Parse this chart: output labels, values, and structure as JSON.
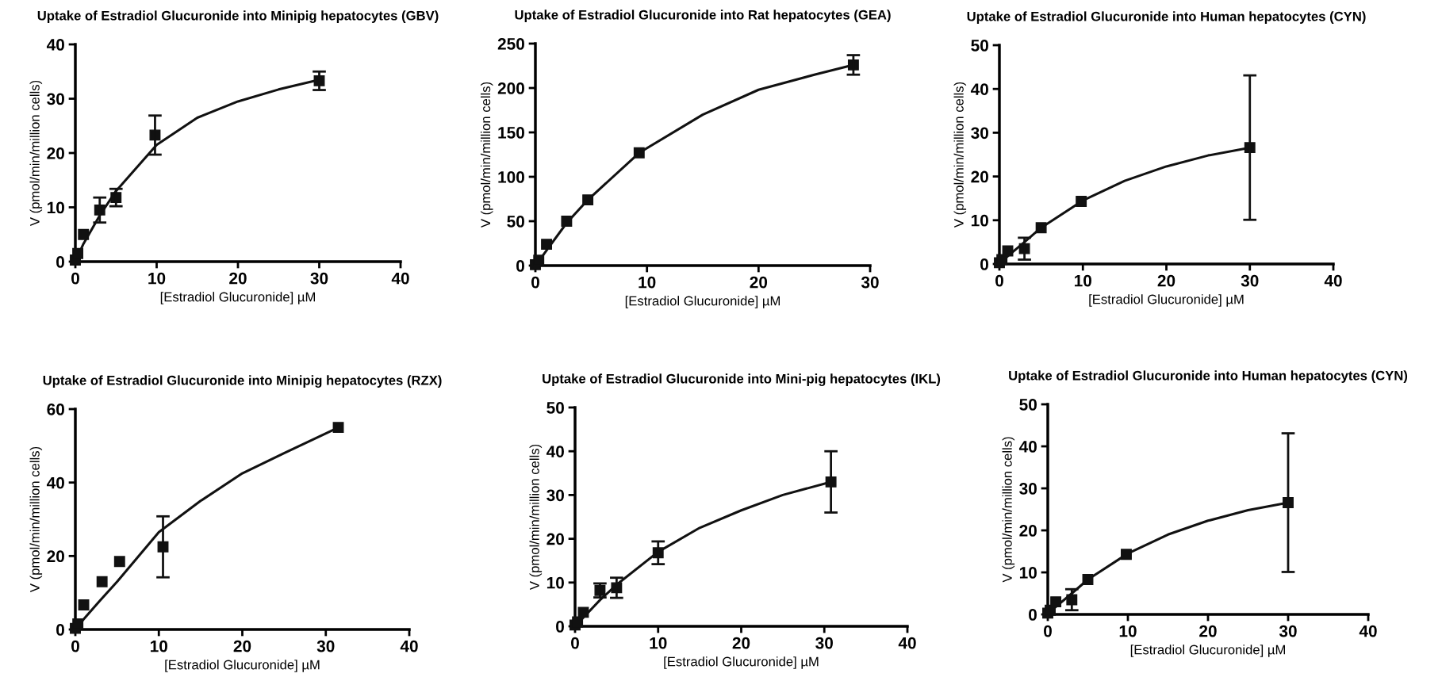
{
  "chart_data": [
    {
      "type": "scatter",
      "title": "Uptake of Estradiol Glucuronide into Minipig hepatocytes (GBV)",
      "xlabel": "[Estradiol Glucuronide] µM",
      "ylabel": "V (pmol/min/million cells)",
      "xlim": [
        0,
        40
      ],
      "xticks": [
        0,
        10,
        20,
        30,
        40
      ],
      "ylim": [
        0,
        40
      ],
      "yticks": [
        0,
        10,
        20,
        30,
        40
      ],
      "series": [
        {
          "marker": "square",
          "color": "#111111",
          "x": [
            0,
            0.3,
            1,
            3,
            5,
            9.8,
            30
          ],
          "values": [
            0.3,
            1.5,
            5,
            9.5,
            11.8,
            23.3,
            33.3
          ],
          "errors": [
            null,
            null,
            null,
            2.3,
            1.6,
            3.6,
            1.7
          ]
        },
        {
          "type": "line",
          "color": "#111111",
          "line_style": "solid",
          "x": [
            0,
            1,
            3,
            5,
            10,
            15,
            20,
            25,
            30
          ],
          "values": [
            0,
            3.3,
            8.5,
            13,
            21.5,
            26.5,
            29.5,
            31.7,
            33.5
          ]
        }
      ]
    },
    {
      "type": "scatter",
      "title": "Uptake of Estradiol Glucuronide into Rat hepatocytes (GEA)",
      "xlabel": "[Estradiol Glucuronide] µM",
      "ylabel": "V (pmol/min/million cells)",
      "xlim": [
        0,
        30
      ],
      "xticks": [
        0,
        10,
        20,
        30
      ],
      "ylim": [
        0,
        250
      ],
      "yticks": [
        0,
        50,
        100,
        150,
        200,
        250
      ],
      "series": [
        {
          "marker": "square",
          "color": "#111111",
          "x": [
            0,
            0.3,
            1,
            2.8,
            4.7,
            9.3,
            28.5
          ],
          "values": [
            1,
            6,
            24,
            50,
            74,
            127,
            226
          ],
          "errors": [
            null,
            null,
            null,
            null,
            null,
            null,
            11
          ]
        },
        {
          "type": "line",
          "color": "#111111",
          "line_style": "solid",
          "x": [
            0,
            1,
            2.8,
            4.7,
            9.3,
            15,
            20,
            25,
            28.5
          ],
          "values": [
            0,
            17,
            48,
            74,
            127,
            170,
            198,
            215,
            226
          ]
        }
      ]
    },
    {
      "type": "scatter",
      "title": "Uptake of Estradiol Glucuronide into Human hepatocytes (CYN)",
      "xlabel": "[Estradiol Glucuronide] µM",
      "ylabel": "V (pmol/min/million cells)",
      "xlim": [
        0,
        40
      ],
      "xticks": [
        0,
        10,
        20,
        30,
        40
      ],
      "ylim": [
        0,
        50
      ],
      "yticks": [
        0,
        10,
        20,
        30,
        40,
        50
      ],
      "series": [
        {
          "marker": "square",
          "color": "#111111",
          "x": [
            0,
            0.3,
            1,
            3,
            5,
            9.8,
            30
          ],
          "values": [
            0.3,
            1,
            3,
            3.5,
            8.3,
            14.3,
            26.6
          ],
          "errors": [
            null,
            null,
            null,
            2.5,
            null,
            null,
            16.5
          ]
        },
        {
          "type": "line",
          "color": "#111111",
          "line_style": "solid",
          "x": [
            0,
            1,
            3,
            5,
            10,
            15,
            20,
            25,
            30
          ],
          "values": [
            0,
            1.8,
            5,
            8.3,
            14.5,
            19,
            22.3,
            24.8,
            26.6
          ]
        }
      ]
    },
    {
      "type": "scatter",
      "title": "Uptake of Estradiol Glucuronide into Minipig hepatocytes (RZX)",
      "xlabel": "[Estradiol Glucuronide] µM",
      "ylabel": "V (pmol/min/million cells)",
      "xlim": [
        0,
        40
      ],
      "xticks": [
        0,
        10,
        20,
        30,
        40
      ],
      "ylim": [
        0,
        60
      ],
      "yticks": [
        0,
        20,
        40,
        60
      ],
      "series": [
        {
          "marker": "square",
          "color": "#111111",
          "x": [
            0,
            0.3,
            1,
            3.2,
            5.3,
            10.5,
            31.5
          ],
          "values": [
            0.3,
            1.5,
            6.7,
            13,
            18.5,
            22.5,
            55
          ],
          "errors": [
            null,
            null,
            null,
            null,
            null,
            8.3,
            null
          ]
        },
        {
          "type": "line",
          "color": "#111111",
          "line_style": "solid",
          "x": [
            0,
            1,
            3,
            5,
            10,
            15,
            20,
            25,
            31.5
          ],
          "values": [
            0,
            2.8,
            8,
            13,
            26.5,
            35,
            42.5,
            48,
            55
          ]
        }
      ]
    },
    {
      "type": "scatter",
      "title": "Uptake of Estradiol Glucuronide into Mini-pig hepatocytes (IKL)",
      "xlabel": "[Estradiol Glucuronide] µM",
      "ylabel": "V (pmol/min/million cells)",
      "xlim": [
        0,
        40
      ],
      "xticks": [
        0,
        10,
        20,
        30,
        40
      ],
      "ylim": [
        0,
        50
      ],
      "yticks": [
        0,
        10,
        20,
        30,
        40,
        50
      ],
      "series": [
        {
          "marker": "square",
          "color": "#111111",
          "x": [
            0,
            0.3,
            1,
            3,
            5,
            10,
            30.8
          ],
          "values": [
            0.3,
            1,
            3.2,
            8.2,
            8.8,
            16.8,
            33
          ],
          "errors": [
            null,
            null,
            null,
            1.6,
            2.3,
            2.6,
            7
          ]
        },
        {
          "type": "line",
          "color": "#111111",
          "line_style": "solid",
          "x": [
            0,
            1,
            3,
            5,
            10,
            15,
            20,
            25,
            30.8
          ],
          "values": [
            0,
            2,
            6,
            9.5,
            17,
            22.5,
            26.5,
            30,
            33
          ]
        }
      ]
    },
    {
      "type": "scatter",
      "title": "Uptake of Estradiol Glucuronide into Human hepatocytes (CYN)",
      "xlabel": "[Estradiol Glucuronide] µM",
      "ylabel": "V (pmol/min/million cells)",
      "xlim": [
        0,
        40
      ],
      "xticks": [
        0,
        10,
        20,
        30,
        40
      ],
      "ylim": [
        0,
        50
      ],
      "yticks": [
        0,
        10,
        20,
        30,
        40,
        50
      ],
      "series": [
        {
          "marker": "square",
          "color": "#111111",
          "x": [
            0,
            0.3,
            1,
            3,
            5,
            9.8,
            30
          ],
          "values": [
            0.3,
            1,
            3,
            3.5,
            8.3,
            14.3,
            26.6
          ],
          "errors": [
            null,
            null,
            null,
            2.5,
            null,
            null,
            16.5
          ]
        },
        {
          "type": "line",
          "color": "#111111",
          "line_style": "solid",
          "x": [
            0,
            1,
            3,
            5,
            10,
            15,
            20,
            25,
            30
          ],
          "values": [
            0,
            1.8,
            5,
            8.3,
            14.5,
            19,
            22.3,
            24.8,
            26.6
          ]
        }
      ]
    }
  ]
}
